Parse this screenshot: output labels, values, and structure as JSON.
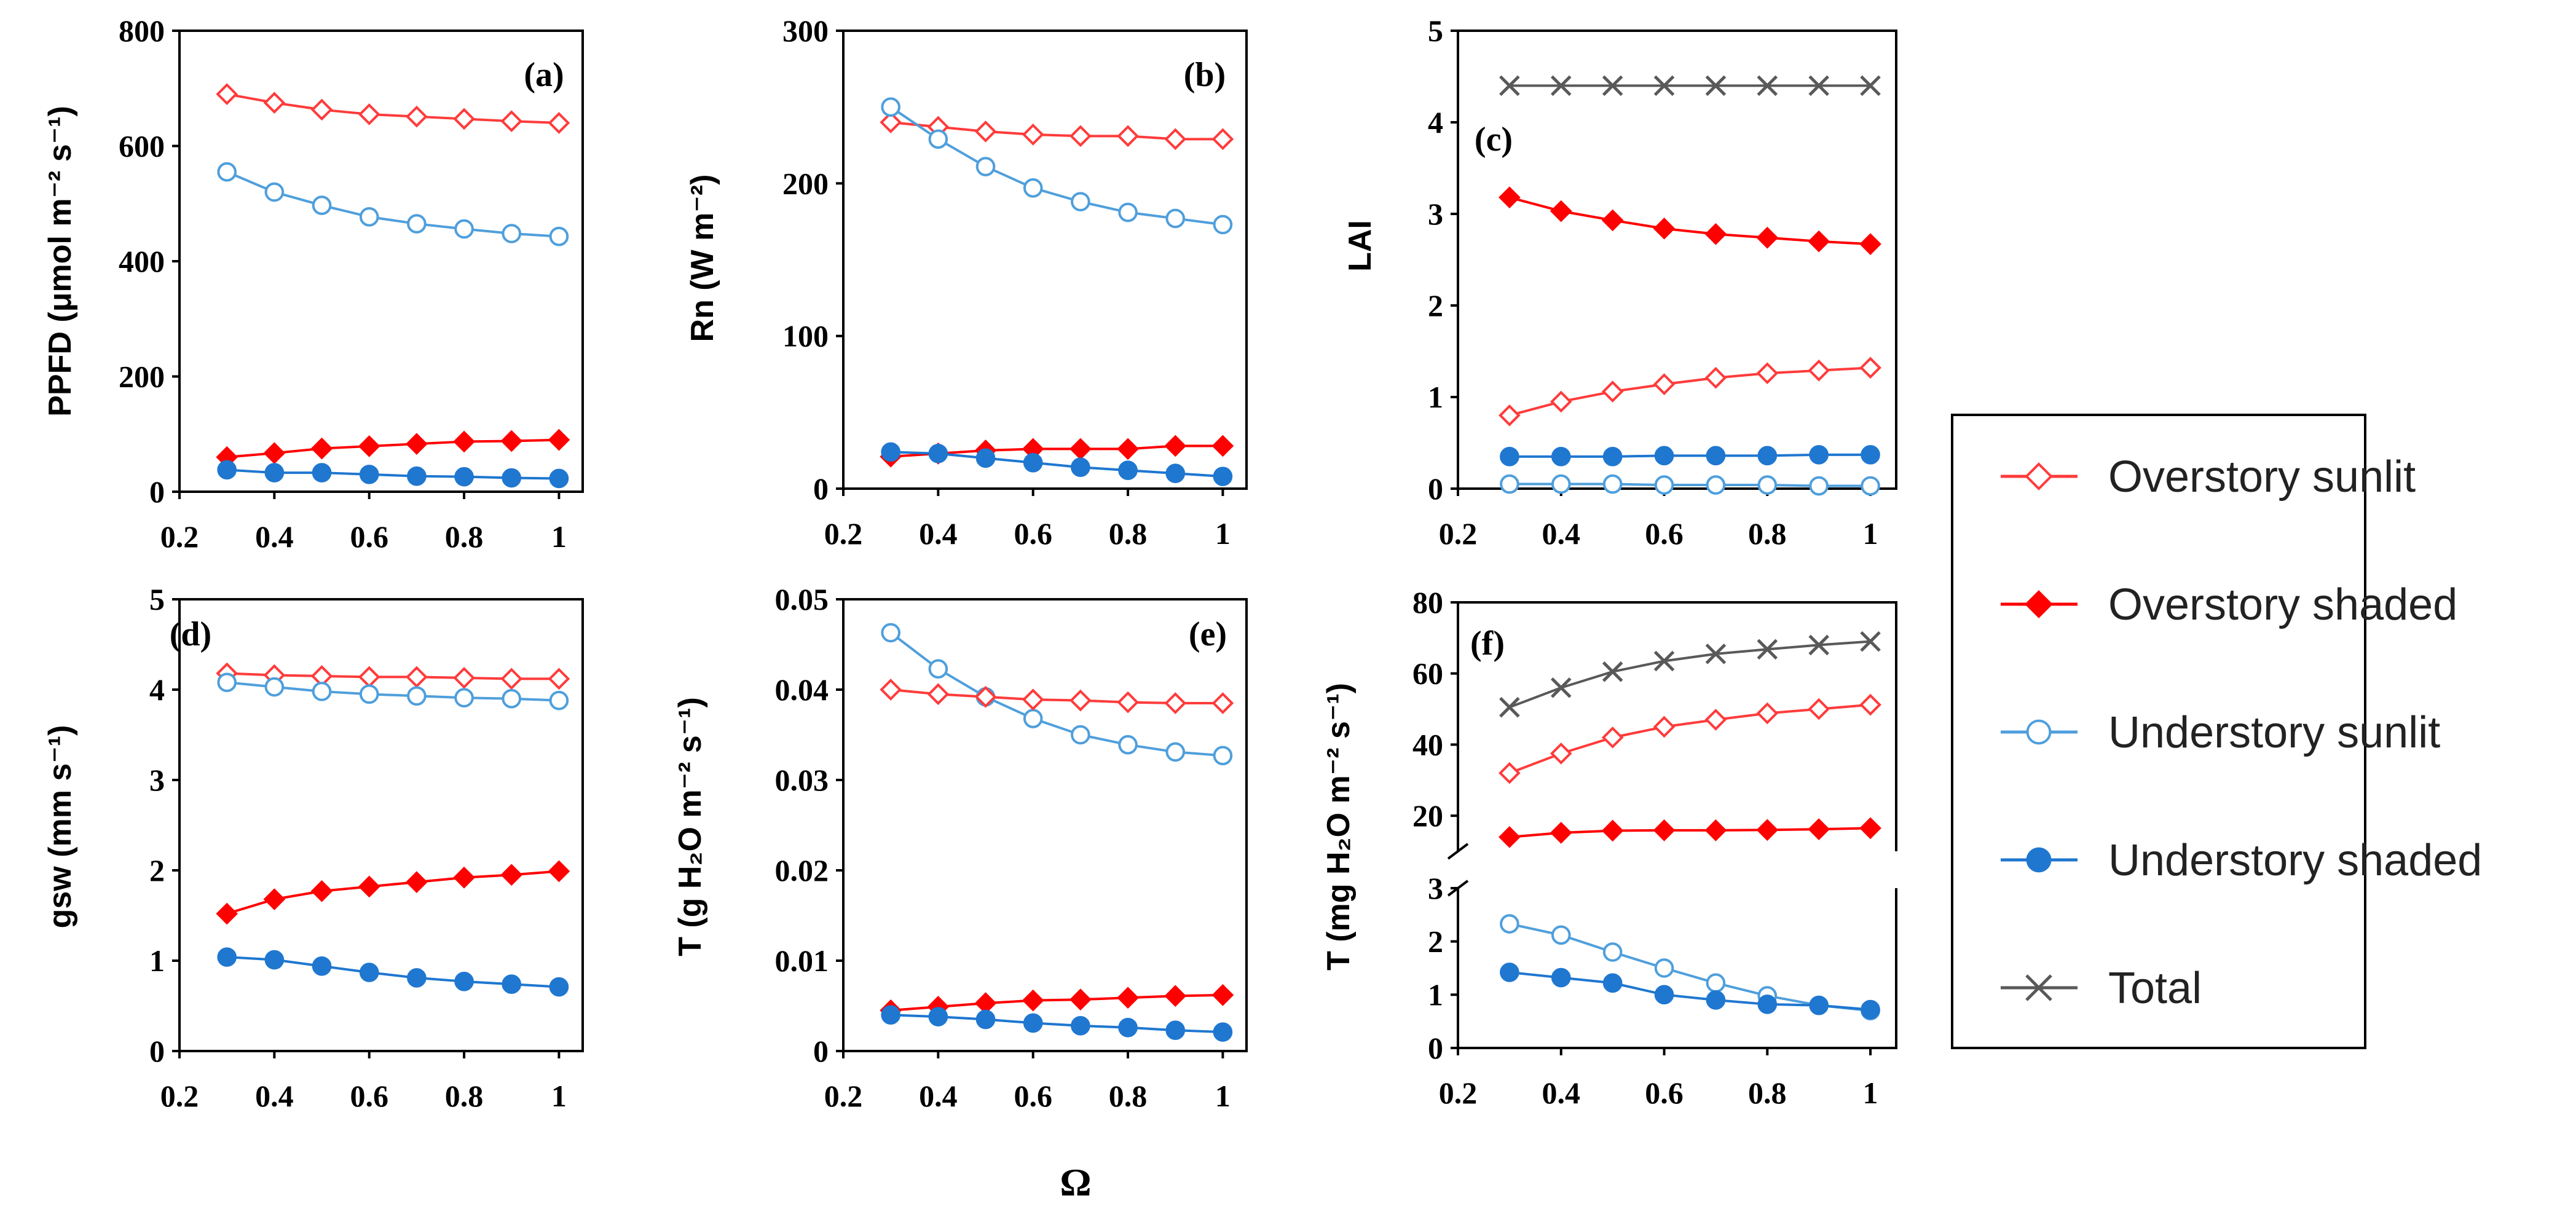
{
  "x_axis_title": "Ω",
  "colors": {
    "overstory_sunlit": "#ff3b3b",
    "overstory_shaded": "#ff0000",
    "understory_sunlit": "#4f9fdc",
    "understory_shaded": "#1f77d0",
    "total": "#595959"
  },
  "legend": [
    {
      "key": "overstory_sunlit",
      "label": "Overstory sunlit"
    },
    {
      "key": "overstory_shaded",
      "label": "Overstory shaded"
    },
    {
      "key": "understory_sunlit",
      "label": "Understory sunlit"
    },
    {
      "key": "understory_shaded",
      "label": "Understory shaded"
    },
    {
      "key": "total",
      "label": "Total"
    }
  ],
  "chart_data": [
    {
      "id": "a",
      "panel_label": "(a)",
      "type": "line",
      "ylabel": "PPFD (μmol m⁻² s⁻¹)",
      "xlim": [
        0.2,
        1.05
      ],
      "ylim": [
        0,
        800
      ],
      "yticks": [
        0,
        200,
        400,
        600,
        800
      ],
      "yticklabels": [
        "0",
        "200",
        "400",
        "600",
        "800"
      ],
      "xticks": [
        0.2,
        0.4,
        0.6,
        0.8,
        1
      ],
      "xticklabels": [
        "0.2",
        "0.4",
        "0.6",
        "0.8",
        "1"
      ],
      "x": [
        0.3,
        0.4,
        0.5,
        0.6,
        0.7,
        0.8,
        0.9,
        1.0
      ],
      "series": [
        {
          "key": "overstory_sunlit",
          "values": [
            690,
            675,
            663,
            655,
            651,
            647,
            643,
            640
          ]
        },
        {
          "key": "understory_sunlit",
          "values": [
            555,
            520,
            497,
            477,
            465,
            456,
            448,
            443
          ]
        },
        {
          "key": "overstory_shaded",
          "values": [
            60,
            67,
            75,
            79,
            83,
            87,
            88,
            90
          ]
        },
        {
          "key": "understory_shaded",
          "values": [
            38,
            33,
            33,
            30,
            27,
            26,
            24,
            23
          ]
        }
      ]
    },
    {
      "id": "b",
      "panel_label": "(b)",
      "type": "line",
      "ylabel": "Rn (W m⁻²)",
      "xlim": [
        0.2,
        1.05
      ],
      "ylim": [
        0,
        300
      ],
      "yticks": [
        0,
        100,
        200,
        300
      ],
      "yticklabels": [
        "0",
        "100",
        "200",
        "300"
      ],
      "xticks": [
        0.2,
        0.4,
        0.6,
        0.8,
        1
      ],
      "xticklabels": [
        "0.2",
        "0.4",
        "0.6",
        "0.8",
        "1"
      ],
      "x": [
        0.3,
        0.4,
        0.5,
        0.6,
        0.7,
        0.8,
        0.9,
        1.0
      ],
      "series": [
        {
          "key": "overstory_sunlit",
          "values": [
            240,
            237,
            234,
            232,
            231,
            231,
            229,
            229
          ]
        },
        {
          "key": "understory_sunlit",
          "values": [
            250,
            229,
            211,
            197,
            188,
            181,
            177,
            173
          ]
        },
        {
          "key": "overstory_shaded",
          "values": [
            21,
            23,
            25,
            26,
            26,
            26,
            28,
            28
          ]
        },
        {
          "key": "understory_shaded",
          "values": [
            24,
            23,
            20,
            17,
            14,
            12,
            10,
            8
          ]
        }
      ]
    },
    {
      "id": "c",
      "panel_label": "(c)",
      "type": "line",
      "ylabel": "LAI",
      "xlim": [
        0.2,
        1.05
      ],
      "ylim": [
        0,
        5
      ],
      "yticks": [
        0,
        1,
        2,
        3,
        4,
        5
      ],
      "yticklabels": [
        "0",
        "1",
        "2",
        "3",
        "4",
        "5"
      ],
      "xticks": [
        0.2,
        0.4,
        0.6,
        0.8,
        1
      ],
      "xticklabels": [
        "0.2",
        "0.4",
        "0.6",
        "0.8",
        "1"
      ],
      "x": [
        0.3,
        0.4,
        0.5,
        0.6,
        0.7,
        0.8,
        0.9,
        1.0
      ],
      "series": [
        {
          "key": "total",
          "values": [
            4.4,
            4.4,
            4.4,
            4.4,
            4.4,
            4.4,
            4.4,
            4.4
          ]
        },
        {
          "key": "overstory_shaded",
          "values": [
            3.18,
            3.03,
            2.93,
            2.84,
            2.78,
            2.74,
            2.7,
            2.67
          ]
        },
        {
          "key": "overstory_sunlit",
          "values": [
            0.8,
            0.95,
            1.06,
            1.14,
            1.21,
            1.26,
            1.29,
            1.32
          ]
        },
        {
          "key": "understory_shaded",
          "values": [
            0.35,
            0.35,
            0.35,
            0.36,
            0.36,
            0.36,
            0.37,
            0.37
          ]
        },
        {
          "key": "understory_sunlit",
          "values": [
            0.05,
            0.05,
            0.05,
            0.04,
            0.04,
            0.04,
            0.03,
            0.03
          ]
        }
      ]
    },
    {
      "id": "d",
      "panel_label": "(d)",
      "type": "line",
      "ylabel": "gsw (mm s⁻¹)",
      "xlim": [
        0.2,
        1.05
      ],
      "ylim": [
        0,
        5
      ],
      "yticks": [
        0,
        1,
        2,
        3,
        4,
        5
      ],
      "yticklabels": [
        "0",
        "1",
        "2",
        "3",
        "4",
        "5"
      ],
      "xticks": [
        0.2,
        0.4,
        0.6,
        0.8,
        1
      ],
      "xticklabels": [
        "0.2",
        "0.4",
        "0.6",
        "0.8",
        "1"
      ],
      "x": [
        0.3,
        0.4,
        0.5,
        0.6,
        0.7,
        0.8,
        0.9,
        1.0
      ],
      "series": [
        {
          "key": "overstory_sunlit",
          "values": [
            4.18,
            4.16,
            4.15,
            4.14,
            4.14,
            4.13,
            4.12,
            4.12
          ]
        },
        {
          "key": "understory_sunlit",
          "values": [
            4.08,
            4.03,
            3.98,
            3.95,
            3.93,
            3.91,
            3.9,
            3.88
          ]
        },
        {
          "key": "overstory_shaded",
          "values": [
            1.52,
            1.68,
            1.77,
            1.82,
            1.87,
            1.92,
            1.95,
            1.99
          ]
        },
        {
          "key": "understory_shaded",
          "values": [
            1.04,
            1.01,
            0.94,
            0.87,
            0.81,
            0.77,
            0.74,
            0.71
          ]
        }
      ]
    },
    {
      "id": "e",
      "panel_label": "(e)",
      "type": "line",
      "ylabel": "T (g H₂O m⁻² s⁻¹)",
      "xlim": [
        0.2,
        1.05
      ],
      "ylim": [
        0,
        0.05
      ],
      "yticks": [
        0,
        0.01,
        0.02,
        0.03,
        0.04,
        0.05
      ],
      "yticklabels": [
        "0",
        "0.01",
        "0.02",
        "0.03",
        "0.04",
        "0.05"
      ],
      "xticks": [
        0.2,
        0.4,
        0.6,
        0.8,
        1
      ],
      "xticklabels": [
        "0.2",
        "0.4",
        "0.6",
        "0.8",
        "1"
      ],
      "x": [
        0.3,
        0.4,
        0.5,
        0.6,
        0.7,
        0.8,
        0.9,
        1.0
      ],
      "series": [
        {
          "key": "understory_sunlit",
          "values": [
            0.0463,
            0.0423,
            0.0392,
            0.0368,
            0.035,
            0.0339,
            0.0331,
            0.0327
          ]
        },
        {
          "key": "overstory_sunlit",
          "values": [
            0.04,
            0.0395,
            0.0392,
            0.0389,
            0.0388,
            0.0386,
            0.0385,
            0.0385
          ]
        },
        {
          "key": "overstory_shaded",
          "values": [
            0.0045,
            0.0049,
            0.0053,
            0.0056,
            0.0057,
            0.0059,
            0.0061,
            0.0062
          ]
        },
        {
          "key": "understory_shaded",
          "values": [
            0.004,
            0.0038,
            0.0035,
            0.0031,
            0.0028,
            0.0026,
            0.0023,
            0.0021
          ]
        }
      ]
    },
    {
      "id": "f",
      "panel_label": "(f)",
      "type": "line",
      "ylabel": "T (mg H₂O m⁻² s⁻¹)",
      "axis_break": {
        "lower_range": [
          0,
          3
        ],
        "upper_range": [
          10,
          80
        ]
      },
      "xlim": [
        0.2,
        1.05
      ],
      "yticks_lower": [
        0,
        1,
        2,
        3
      ],
      "yticklabels_lower": [
        "0",
        "1",
        "2",
        "3"
      ],
      "yticks_upper": [
        20,
        40,
        60,
        80
      ],
      "yticklabels_upper": [
        "20",
        "40",
        "60",
        "80"
      ],
      "xticks": [
        0.2,
        0.4,
        0.6,
        0.8,
        1
      ],
      "xticklabels": [
        "0.2",
        "0.4",
        "0.6",
        "0.8",
        "1"
      ],
      "x": [
        0.3,
        0.4,
        0.5,
        0.6,
        0.7,
        0.8,
        0.9,
        1.0
      ],
      "series": [
        {
          "key": "total",
          "values": [
            50.5,
            56.0,
            60.5,
            63.5,
            65.5,
            66.8,
            68.0,
            69.0
          ]
        },
        {
          "key": "overstory_sunlit",
          "values": [
            32.0,
            37.5,
            42.0,
            45.0,
            47.0,
            48.8,
            50.0,
            51.2
          ]
        },
        {
          "key": "overstory_shaded",
          "values": [
            14.0,
            15.2,
            15.8,
            15.9,
            15.9,
            16.0,
            16.2,
            16.5
          ]
        },
        {
          "key": "understory_sunlit",
          "values": [
            2.33,
            2.12,
            1.8,
            1.5,
            1.22,
            0.98,
            0.8,
            0.7
          ]
        },
        {
          "key": "understory_shaded",
          "values": [
            1.42,
            1.32,
            1.22,
            1.0,
            0.9,
            0.82,
            0.8,
            0.72
          ]
        }
      ]
    }
  ]
}
